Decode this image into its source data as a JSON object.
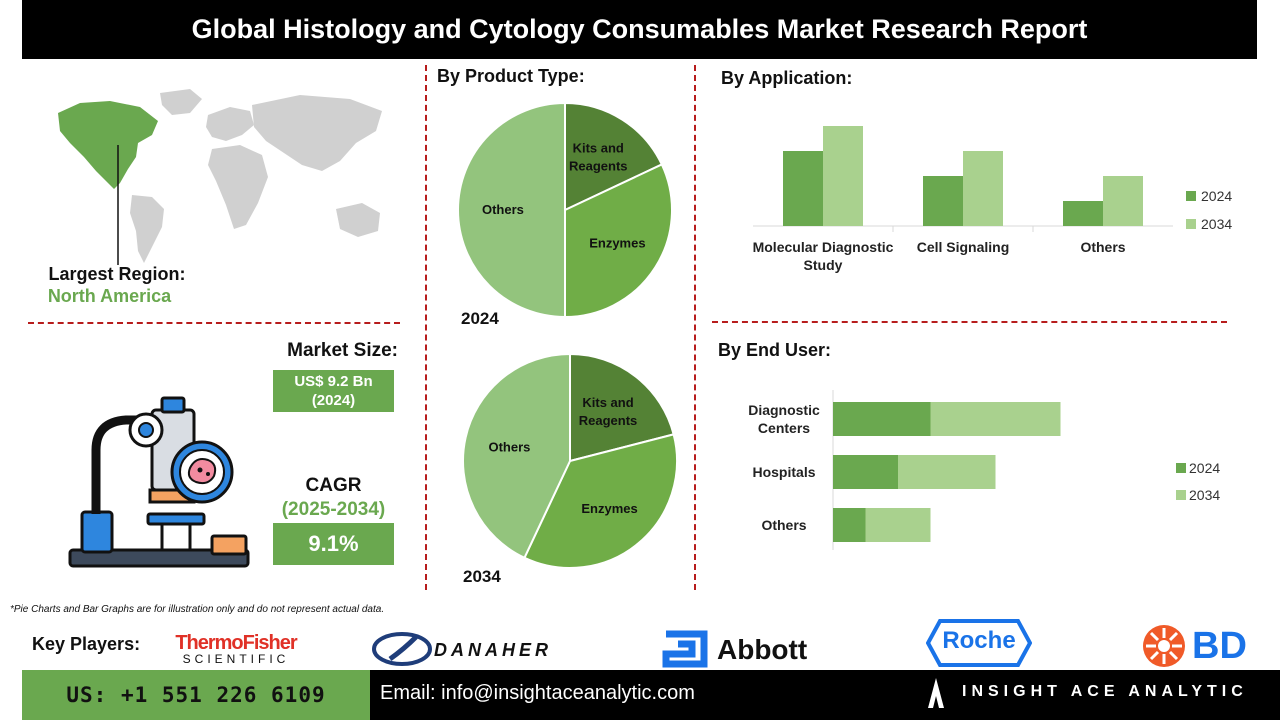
{
  "title": "Global Histology and Cytology Consumables Market Research Report",
  "region": {
    "label": "Largest Region:",
    "value": "North America"
  },
  "market_size": {
    "label": "Market Size:",
    "value_line1": "US$ 9.2 Bn",
    "value_line2": "(2024)"
  },
  "cagr": {
    "label": "CAGR",
    "period": "(2025-2034)",
    "value": "9.1%"
  },
  "product_type": {
    "heading": "By Product Type:"
  },
  "application": {
    "heading": "By Application:"
  },
  "end_user": {
    "heading": "By End User:"
  },
  "chart_data": [
    {
      "type": "pie",
      "title": "By Product Type:",
      "year": "2024",
      "categories": [
        "Kits and Reagents",
        "Enzymes",
        "Others"
      ],
      "values": [
        18,
        32,
        50
      ],
      "colors": [
        "#548235",
        "#70ad47",
        "#93c47d"
      ]
    },
    {
      "type": "pie",
      "title": "By Product Type:",
      "year": "2034",
      "categories": [
        "Kits and Reagents",
        "Enzymes",
        "Others"
      ],
      "values": [
        21,
        36,
        43
      ],
      "colors": [
        "#548235",
        "#70ad47",
        "#93c47d"
      ]
    },
    {
      "type": "bar",
      "title": "By Application:",
      "categories": [
        "Molecular Diagnostic Study",
        "Cell Signaling",
        "Others"
      ],
      "series": [
        {
          "name": "2024",
          "values": [
            3,
            2,
            1
          ],
          "color": "#6aa84f"
        },
        {
          "name": "2034",
          "values": [
            4,
            3,
            2
          ],
          "color": "#a9d18e"
        }
      ],
      "legend": "right"
    },
    {
      "type": "bar",
      "orientation": "horizontal",
      "stacked": true,
      "title": "By End User:",
      "categories": [
        "Diagnostic Centers",
        "Hospitals",
        "Others"
      ],
      "series": [
        {
          "name": "2024",
          "values": [
            3,
            2,
            1
          ],
          "color": "#6aa84f"
        },
        {
          "name": "2034",
          "values": [
            4,
            3,
            2
          ],
          "color": "#a9d18e"
        }
      ],
      "legend": "right"
    }
  ],
  "footnote": "*Pie Charts and Bar Graphs are for illustration only and do not represent actual data.",
  "key_players": {
    "label": "Key Players:",
    "companies": [
      "ThermoFisher",
      "SCIENTIFIC",
      "DANAHER",
      "Abbott",
      "Roche",
      "BD"
    ]
  },
  "footer": {
    "phone": "US: +1 551 226 6109",
    "email": "Email: info@insightaceanalytic.com",
    "brand": "INSIGHT ACE ANALYTIC"
  },
  "colors": {
    "accent_green": "#6aa84f",
    "light_green": "#a9d18e",
    "divider_red": "#b71c1c"
  }
}
